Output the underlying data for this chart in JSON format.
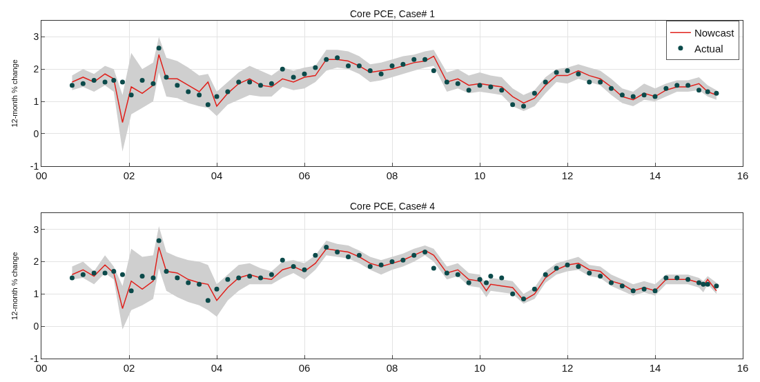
{
  "chart_data": [
    {
      "type": "line",
      "title": "Core PCE, Case# 1",
      "ylabel": "12-month % change",
      "legend": "top right",
      "grid": true,
      "xlim": [
        0,
        16
      ],
      "ylim": [
        -1,
        3.5
      ],
      "xticks": [
        {
          "value": 0,
          "label": "00"
        },
        {
          "value": 2,
          "label": "02"
        },
        {
          "value": 4,
          "label": "04"
        },
        {
          "value": 6,
          "label": "06"
        },
        {
          "value": 8,
          "label": "08"
        },
        {
          "value": 10,
          "label": "10"
        },
        {
          "value": 12,
          "label": "12"
        },
        {
          "value": 14,
          "label": "14"
        },
        {
          "value": 16,
          "label": "16"
        }
      ],
      "yticks": [
        -1,
        0,
        1,
        2,
        3
      ],
      "x": [
        0.7,
        0.95,
        1.2,
        1.45,
        1.65,
        1.85,
        2.05,
        2.3,
        2.55,
        2.68,
        2.85,
        3.1,
        3.35,
        3.6,
        3.8,
        4.0,
        4.25,
        4.5,
        4.75,
        5.0,
        5.25,
        5.5,
        5.75,
        6.0,
        6.25,
        6.5,
        6.75,
        7.0,
        7.25,
        7.5,
        7.75,
        8.0,
        8.25,
        8.5,
        8.75,
        8.95,
        9.25,
        9.5,
        9.75,
        10.0,
        10.25,
        10.5,
        10.75,
        11.0,
        11.25,
        11.5,
        11.75,
        12.0,
        12.25,
        12.5,
        12.75,
        13.0,
        13.25,
        13.5,
        13.75,
        14.0,
        14.25,
        14.5,
        14.75,
        15.0,
        15.2,
        15.4
      ],
      "series": [
        {
          "name": "Nowcast",
          "type": "line",
          "color": "#e0201b",
          "marker": "none",
          "values": [
            1.6,
            1.75,
            1.6,
            1.85,
            1.7,
            0.35,
            1.45,
            1.25,
            1.5,
            2.45,
            1.7,
            1.7,
            1.5,
            1.3,
            1.6,
            0.85,
            1.25,
            1.55,
            1.7,
            1.5,
            1.45,
            1.7,
            1.6,
            1.75,
            1.8,
            2.3,
            2.3,
            2.25,
            2.1,
            1.9,
            1.95,
            2.0,
            2.1,
            2.2,
            2.25,
            2.4,
            1.6,
            1.7,
            1.5,
            1.55,
            1.5,
            1.45,
            1.15,
            0.95,
            1.1,
            1.5,
            1.8,
            1.8,
            1.95,
            1.8,
            1.7,
            1.45,
            1.15,
            1.05,
            1.25,
            1.15,
            1.35,
            1.45,
            1.45,
            1.55,
            1.3,
            1.2
          ],
          "lower": [
            1.35,
            1.45,
            1.3,
            1.5,
            1.3,
            -0.55,
            0.6,
            0.8,
            1.0,
            1.9,
            1.15,
            1.1,
            0.95,
            0.85,
            0.8,
            0.55,
            0.9,
            1.05,
            1.2,
            1.15,
            1.15,
            1.45,
            1.35,
            1.4,
            1.6,
            1.95,
            2.05,
            2.0,
            1.85,
            1.6,
            1.65,
            1.75,
            1.85,
            1.95,
            2.05,
            2.1,
            1.3,
            1.4,
            1.25,
            1.3,
            1.25,
            1.2,
            0.85,
            0.7,
            0.85,
            1.25,
            1.6,
            1.55,
            1.7,
            1.6,
            1.5,
            1.2,
            0.95,
            0.85,
            1.05,
            1.0,
            1.15,
            1.3,
            1.3,
            1.35,
            1.15,
            1.05
          ],
          "upper": [
            1.8,
            2.0,
            1.85,
            2.1,
            2.0,
            1.2,
            2.5,
            2.0,
            2.2,
            3.0,
            2.35,
            2.25,
            2.05,
            1.8,
            1.85,
            1.3,
            1.6,
            1.9,
            2.1,
            1.95,
            1.8,
            2.05,
            1.95,
            2.05,
            2.1,
            2.6,
            2.6,
            2.55,
            2.4,
            2.15,
            2.2,
            2.3,
            2.4,
            2.45,
            2.55,
            2.6,
            1.9,
            2.0,
            1.8,
            1.9,
            1.8,
            1.75,
            1.4,
            1.2,
            1.35,
            1.75,
            2.0,
            2.05,
            2.15,
            2.05,
            1.95,
            1.7,
            1.4,
            1.3,
            1.55,
            1.4,
            1.55,
            1.65,
            1.65,
            1.75,
            1.5,
            1.35
          ]
        },
        {
          "name": "Actual",
          "type": "scatter",
          "color": "#0b4a4a",
          "marker": "circle",
          "values": [
            1.5,
            1.55,
            1.65,
            1.6,
            1.65,
            1.6,
            1.2,
            1.65,
            1.55,
            2.65,
            1.75,
            1.5,
            1.3,
            1.2,
            0.9,
            1.15,
            1.3,
            1.6,
            1.6,
            1.5,
            1.55,
            2.0,
            1.75,
            1.85,
            2.05,
            2.3,
            2.35,
            2.1,
            2.1,
            1.95,
            1.85,
            2.1,
            2.15,
            2.3,
            2.3,
            1.95,
            1.6,
            1.55,
            1.35,
            1.5,
            1.45,
            1.35,
            0.9,
            0.85,
            1.25,
            1.6,
            1.9,
            1.95,
            1.85,
            1.6,
            1.6,
            1.4,
            1.2,
            1.15,
            1.2,
            1.15,
            1.4,
            1.5,
            1.5,
            1.35,
            1.3,
            1.25
          ]
        }
      ]
    },
    {
      "type": "line",
      "title": "Core PCE, Case# 4",
      "ylabel": "12-month % change",
      "grid": true,
      "xlim": [
        0,
        16
      ],
      "ylim": [
        -1,
        3.5
      ],
      "xticks": [
        {
          "value": 0,
          "label": "00"
        },
        {
          "value": 2,
          "label": "02"
        },
        {
          "value": 4,
          "label": "04"
        },
        {
          "value": 6,
          "label": "06"
        },
        {
          "value": 8,
          "label": "08"
        },
        {
          "value": 10,
          "label": "10"
        },
        {
          "value": 12,
          "label": "12"
        },
        {
          "value": 14,
          "label": "14"
        },
        {
          "value": 16,
          "label": "16"
        }
      ],
      "yticks": [
        -1,
        0,
        1,
        2,
        3
      ],
      "x": [
        0.7,
        0.95,
        1.2,
        1.45,
        1.65,
        1.85,
        2.05,
        2.3,
        2.55,
        2.68,
        2.85,
        3.1,
        3.35,
        3.6,
        3.8,
        4.0,
        4.25,
        4.5,
        4.75,
        5.0,
        5.25,
        5.5,
        5.75,
        6.0,
        6.25,
        6.5,
        6.75,
        7.0,
        7.25,
        7.5,
        7.75,
        8.0,
        8.25,
        8.5,
        8.75,
        8.95,
        9.25,
        9.5,
        9.75,
        10.0,
        10.15,
        10.25,
        10.5,
        10.75,
        11.0,
        11.25,
        11.5,
        11.75,
        12.0,
        12.25,
        12.5,
        12.75,
        13.0,
        13.25,
        13.5,
        13.75,
        14.0,
        14.25,
        14.5,
        14.75,
        15.0,
        15.1,
        15.2,
        15.4
      ],
      "series": [
        {
          "type": "line",
          "color": "#e0201b",
          "marker": "none",
          "values": [
            1.6,
            1.75,
            1.55,
            1.9,
            1.65,
            0.55,
            1.4,
            1.15,
            1.4,
            2.45,
            1.7,
            1.65,
            1.45,
            1.35,
            1.3,
            0.8,
            1.2,
            1.5,
            1.6,
            1.5,
            1.45,
            1.75,
            1.85,
            1.7,
            1.95,
            2.4,
            2.35,
            2.3,
            2.15,
            1.95,
            1.85,
            1.95,
            2.05,
            2.2,
            2.35,
            2.2,
            1.65,
            1.75,
            1.45,
            1.4,
            1.1,
            1.3,
            1.25,
            1.2,
            0.8,
            1.0,
            1.5,
            1.75,
            1.9,
            1.95,
            1.75,
            1.7,
            1.4,
            1.3,
            1.1,
            1.2,
            1.1,
            1.45,
            1.45,
            1.45,
            1.35,
            1.25,
            1.45,
            1.1
          ],
          "lower": [
            1.45,
            1.5,
            1.3,
            1.65,
            1.45,
            -0.1,
            0.5,
            0.65,
            0.85,
            1.8,
            1.1,
            0.9,
            0.75,
            0.65,
            0.5,
            0.3,
            0.8,
            1.1,
            1.3,
            1.3,
            1.3,
            1.5,
            1.65,
            1.45,
            1.75,
            2.2,
            2.15,
            2.1,
            1.95,
            1.75,
            1.6,
            1.75,
            1.85,
            2.0,
            2.2,
            2.0,
            1.45,
            1.55,
            1.25,
            1.2,
            0.9,
            1.1,
            1.05,
            1.0,
            0.7,
            0.85,
            1.35,
            1.6,
            1.7,
            1.75,
            1.55,
            1.5,
            1.25,
            1.1,
            0.95,
            1.05,
            0.95,
            1.3,
            1.3,
            1.3,
            1.2,
            1.05,
            1.3,
            1.0
          ],
          "upper": [
            1.85,
            2.0,
            1.7,
            2.2,
            1.85,
            1.25,
            2.4,
            2.15,
            2.2,
            3.1,
            2.3,
            2.15,
            2.05,
            2.0,
            1.9,
            1.3,
            1.6,
            1.9,
            1.95,
            1.8,
            1.7,
            2.0,
            2.05,
            1.95,
            2.2,
            2.65,
            2.55,
            2.5,
            2.35,
            2.15,
            2.05,
            2.15,
            2.25,
            2.4,
            2.5,
            2.4,
            1.85,
            1.95,
            1.65,
            1.6,
            1.3,
            1.5,
            1.45,
            1.4,
            1.0,
            1.2,
            1.7,
            1.95,
            2.05,
            2.15,
            1.9,
            1.85,
            1.6,
            1.45,
            1.3,
            1.4,
            1.3,
            1.6,
            1.6,
            1.6,
            1.5,
            1.4,
            1.55,
            1.35
          ]
        },
        {
          "type": "scatter",
          "color": "#0b4a4a",
          "marker": "circle",
          "values": [
            1.5,
            1.6,
            1.65,
            1.65,
            1.7,
            1.6,
            1.1,
            1.55,
            1.5,
            2.65,
            1.7,
            1.5,
            1.35,
            1.3,
            0.8,
            1.15,
            1.45,
            1.5,
            1.55,
            1.5,
            1.6,
            2.05,
            1.85,
            1.75,
            2.2,
            2.45,
            2.3,
            2.15,
            2.2,
            1.85,
            1.9,
            2.0,
            2.05,
            2.2,
            2.3,
            1.8,
            1.65,
            1.6,
            1.35,
            1.45,
            1.35,
            1.55,
            1.5,
            1.0,
            0.85,
            1.15,
            1.6,
            1.8,
            1.9,
            1.85,
            1.65,
            1.55,
            1.35,
            1.25,
            1.1,
            1.15,
            1.1,
            1.5,
            1.5,
            1.45,
            1.35,
            1.3,
            1.3,
            1.25
          ]
        }
      ]
    }
  ]
}
